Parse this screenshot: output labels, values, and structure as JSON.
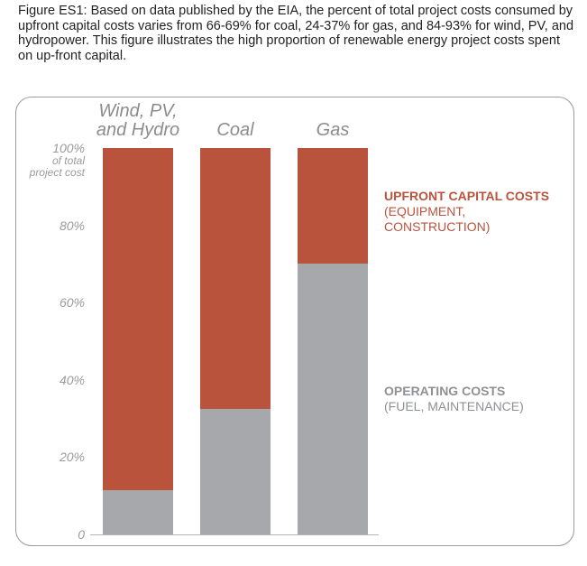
{
  "caption": "Figure ES1: Based on data published by the EIA, the percent of total project costs consumed by upfront capital costs varies from 66-69% for coal, 24-37% for gas, and 84-93% for wind, PV, and hydropower. This figure illustrates the high proportion of renewable energy project costs spent on up-front capital.",
  "colors": {
    "upfront": "#b9533c",
    "operating": "#a7a8ac"
  },
  "chart_data": {
    "type": "bar",
    "stacked": true,
    "categories": [
      "Wind, PV, and Hydro",
      "Coal",
      "Gas"
    ],
    "category_lines": [
      [
        "Wind, PV,",
        "and Hydro"
      ],
      [
        "Coal"
      ],
      [
        "Gas"
      ]
    ],
    "series": [
      {
        "name": "OPERATING COSTS",
        "values": [
          11.5,
          32.5,
          70
        ]
      },
      {
        "name": "UPFRONT CAPITAL COSTS",
        "values": [
          88.5,
          67.5,
          30
        ]
      }
    ],
    "ylim": [
      0,
      100
    ],
    "yticks": [
      "0",
      "20%",
      "40%",
      "60%",
      "80%",
      "100%"
    ],
    "ytick_top_sub": [
      "of total",
      "project cost"
    ],
    "legend": [
      {
        "title": "UPFRONT CAPITAL COSTS",
        "sub": "(EQUIPMENT, CONSTRUCTION)"
      },
      {
        "title": "OPERATING COSTS",
        "sub": "(FUEL, MAINTENANCE)"
      }
    ],
    "grid": false,
    "legend_placement": "right"
  }
}
